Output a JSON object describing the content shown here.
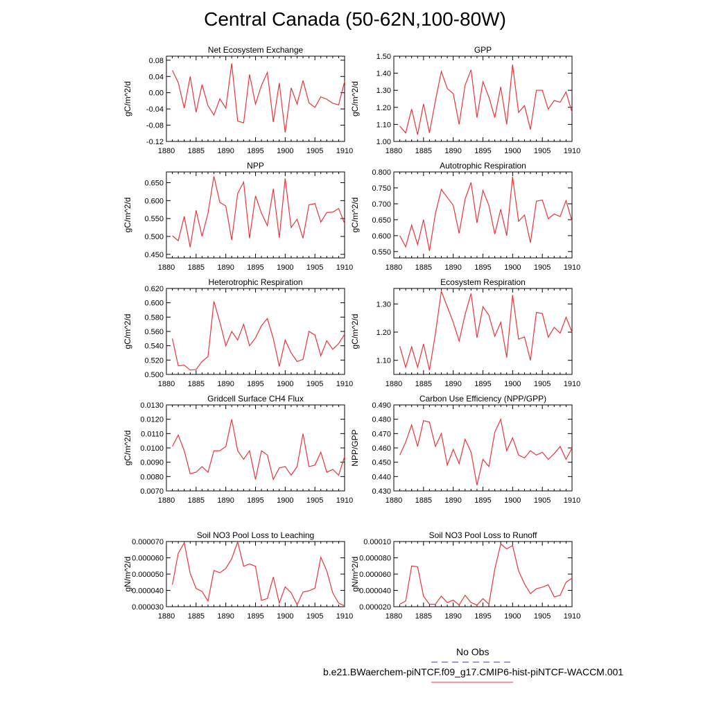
{
  "page": {
    "title": "Central Canada (50-62N,100-80W)"
  },
  "legend": {
    "obs_label": "No Obs",
    "model_label": "b.e21.BWaerchem-piNTCF.f09_g17.CMIP6-hist-piNTCF-WACCM.001",
    "colors": {
      "obs": "#3a3aa0",
      "model": "#e8353a"
    }
  },
  "chart_data": [
    {
      "type": "line",
      "title": "Net Ecosystem Exchange",
      "ylabel": "gC/m^2/d",
      "xlim": [
        1880,
        1910
      ],
      "x_ticks": [
        "1880",
        "1885",
        "1890",
        "1895",
        "1900",
        "1905",
        "1910"
      ],
      "ylim": [
        -0.12,
        0.09
      ],
      "y_ticks": [
        0.08,
        0.04,
        0.0,
        -0.04,
        -0.08,
        -0.12
      ],
      "y_tick_labels": [
        "0.08",
        "0.04",
        "0.00",
        "-0.04",
        "-0.08",
        "-0.12"
      ],
      "x": [
        1881,
        1882,
        1883,
        1884,
        1885,
        1886,
        1887,
        1888,
        1889,
        1890,
        1891,
        1892,
        1893,
        1894,
        1895,
        1896,
        1897,
        1898,
        1899,
        1900,
        1901,
        1902,
        1903,
        1904,
        1905,
        1906,
        1907,
        1908,
        1909,
        1910
      ],
      "series": [
        {
          "values": [
            0.055,
            0.025,
            -0.038,
            0.04,
            -0.048,
            0.02,
            -0.032,
            -0.055,
            -0.015,
            -0.038,
            0.072,
            -0.07,
            -0.074,
            0.045,
            -0.028,
            0.018,
            0.05,
            -0.072,
            0.024,
            -0.098,
            0.012,
            -0.028,
            0.03,
            -0.025,
            -0.036,
            -0.01,
            -0.016,
            -0.026,
            -0.03,
            0.028
          ],
          "color": "#e8353a"
        }
      ]
    },
    {
      "type": "line",
      "title": "GPP",
      "ylabel": "gC/m^2/d",
      "xlim": [
        1880,
        1910
      ],
      "x_ticks": [
        "1880",
        "1885",
        "1890",
        "1895",
        "1900",
        "1905",
        "1910"
      ],
      "ylim": [
        1.0,
        1.5
      ],
      "y_ticks": [
        1.5,
        1.4,
        1.3,
        1.2,
        1.1,
        1.0
      ],
      "y_tick_labels": [
        "1.50",
        "1.40",
        "1.30",
        "1.20",
        "1.10",
        "1.00"
      ],
      "x": [
        1881,
        1882,
        1883,
        1884,
        1885,
        1886,
        1887,
        1888,
        1889,
        1890,
        1891,
        1892,
        1893,
        1894,
        1895,
        1896,
        1897,
        1898,
        1899,
        1900,
        1901,
        1902,
        1903,
        1904,
        1905,
        1906,
        1907,
        1908,
        1909,
        1910
      ],
      "series": [
        {
          "values": [
            1.09,
            1.05,
            1.19,
            1.04,
            1.22,
            1.05,
            1.24,
            1.41,
            1.31,
            1.28,
            1.1,
            1.33,
            1.42,
            1.14,
            1.35,
            1.26,
            1.14,
            1.32,
            1.1,
            1.45,
            1.17,
            1.21,
            1.07,
            1.3,
            1.3,
            1.19,
            1.24,
            1.23,
            1.29,
            1.17
          ],
          "color": "#e8353a"
        }
      ]
    },
    {
      "type": "line",
      "title": "NPP",
      "ylabel": "gC/m^2/d",
      "xlim": [
        1880,
        1910
      ],
      "x_ticks": [
        "1880",
        "1885",
        "1890",
        "1895",
        "1900",
        "1905",
        "1910"
      ],
      "ylim": [
        0.44,
        0.68
      ],
      "y_ticks": [
        0.65,
        0.6,
        0.55,
        0.5,
        0.45
      ],
      "y_tick_labels": [
        "0.650",
        "0.600",
        "0.550",
        "0.500",
        "0.450"
      ],
      "x": [
        1881,
        1882,
        1883,
        1884,
        1885,
        1886,
        1887,
        1888,
        1889,
        1890,
        1891,
        1892,
        1893,
        1894,
        1895,
        1896,
        1897,
        1898,
        1899,
        1900,
        1901,
        1902,
        1903,
        1904,
        1905,
        1906,
        1907,
        1908,
        1909,
        1910
      ],
      "series": [
        {
          "values": [
            0.502,
            0.488,
            0.556,
            0.47,
            0.573,
            0.5,
            0.565,
            0.668,
            0.595,
            0.585,
            0.49,
            0.62,
            0.652,
            0.495,
            0.613,
            0.565,
            0.53,
            0.633,
            0.496,
            0.662,
            0.525,
            0.548,
            0.495,
            0.588,
            0.592,
            0.54,
            0.567,
            0.568,
            0.578,
            0.536
          ],
          "color": "#e8353a"
        }
      ]
    },
    {
      "type": "line",
      "title": "Autotrophic Respiration",
      "ylabel": "gC/m^2/d",
      "xlim": [
        1880,
        1910
      ],
      "x_ticks": [
        "1880",
        "1885",
        "1890",
        "1895",
        "1900",
        "1905",
        "1910"
      ],
      "ylim": [
        0.53,
        0.8
      ],
      "y_ticks": [
        0.8,
        0.75,
        0.7,
        0.65,
        0.6,
        0.55
      ],
      "y_tick_labels": [
        "0.800",
        "0.750",
        "0.700",
        "0.650",
        "0.600",
        "0.550"
      ],
      "x": [
        1881,
        1882,
        1883,
        1884,
        1885,
        1886,
        1887,
        1888,
        1889,
        1890,
        1891,
        1892,
        1893,
        1894,
        1895,
        1896,
        1897,
        1898,
        1899,
        1900,
        1901,
        1902,
        1903,
        1904,
        1905,
        1906,
        1907,
        1908,
        1909,
        1910
      ],
      "series": [
        {
          "values": [
            0.6,
            0.565,
            0.633,
            0.572,
            0.65,
            0.552,
            0.67,
            0.745,
            0.72,
            0.695,
            0.607,
            0.715,
            0.767,
            0.64,
            0.742,
            0.695,
            0.605,
            0.683,
            0.6,
            0.785,
            0.645,
            0.665,
            0.578,
            0.708,
            0.712,
            0.653,
            0.668,
            0.66,
            0.71,
            0.645
          ],
          "color": "#e8353a"
        }
      ]
    },
    {
      "type": "line",
      "title": "Heterotrophic Respiration",
      "ylabel": "gC/m^2/d",
      "xlim": [
        1880,
        1910
      ],
      "x_ticks": [
        "1880",
        "1885",
        "1890",
        "1895",
        "1900",
        "1905",
        "1910"
      ],
      "ylim": [
        0.5,
        0.62
      ],
      "y_ticks": [
        0.62,
        0.6,
        0.58,
        0.56,
        0.54,
        0.52,
        0.5
      ],
      "y_tick_labels": [
        "0.620",
        "0.600",
        "0.580",
        "0.560",
        "0.540",
        "0.520",
        "0.500"
      ],
      "x": [
        1881,
        1882,
        1883,
        1884,
        1885,
        1886,
        1887,
        1888,
        1889,
        1890,
        1891,
        1892,
        1893,
        1894,
        1895,
        1896,
        1897,
        1898,
        1899,
        1900,
        1901,
        1902,
        1903,
        1904,
        1905,
        1906,
        1907,
        1908,
        1909,
        1910
      ],
      "series": [
        {
          "values": [
            0.55,
            0.512,
            0.513,
            0.506,
            0.507,
            0.518,
            0.525,
            0.602,
            0.573,
            0.54,
            0.56,
            0.548,
            0.57,
            0.54,
            0.551,
            0.568,
            0.578,
            0.55,
            0.511,
            0.548,
            0.53,
            0.518,
            0.521,
            0.56,
            0.555,
            0.526,
            0.547,
            0.535,
            0.543,
            0.556
          ],
          "color": "#e8353a"
        }
      ]
    },
    {
      "type": "line",
      "title": "Ecosystem Respiration",
      "ylabel": "gC/m^2/d",
      "xlim": [
        1880,
        1910
      ],
      "x_ticks": [
        "1880",
        "1885",
        "1890",
        "1895",
        "1900",
        "1905",
        "1910"
      ],
      "ylim": [
        1.05,
        1.355
      ],
      "y_ticks": [
        1.3,
        1.2,
        1.1
      ],
      "y_tick_labels": [
        "1.30",
        "1.20",
        "1.10"
      ],
      "x": [
        1881,
        1882,
        1883,
        1884,
        1885,
        1886,
        1887,
        1888,
        1889,
        1890,
        1891,
        1892,
        1893,
        1894,
        1895,
        1896,
        1897,
        1898,
        1899,
        1900,
        1901,
        1902,
        1903,
        1904,
        1905,
        1906,
        1907,
        1908,
        1909,
        1910
      ],
      "series": [
        {
          "values": [
            1.15,
            1.075,
            1.148,
            1.075,
            1.158,
            1.065,
            1.195,
            1.345,
            1.29,
            1.235,
            1.168,
            1.263,
            1.337,
            1.18,
            1.29,
            1.26,
            1.185,
            1.235,
            1.11,
            1.332,
            1.175,
            1.183,
            1.1,
            1.27,
            1.266,
            1.182,
            1.217,
            1.196,
            1.253,
            1.2
          ],
          "color": "#e8353a"
        }
      ]
    },
    {
      "type": "line",
      "title": "Gridcell Surface CH4 Flux",
      "ylabel": "gC/m^2/d",
      "xlim": [
        1880,
        1910
      ],
      "x_ticks": [
        "1880",
        "1885",
        "1890",
        "1895",
        "1900",
        "1905",
        "1910"
      ],
      "ylim": [
        0.007,
        0.013
      ],
      "y_ticks": [
        0.013,
        0.012,
        0.011,
        0.01,
        0.009,
        0.008,
        0.007
      ],
      "y_tick_labels": [
        "0.0130",
        "0.0120",
        "0.0110",
        "0.0100",
        "0.0090",
        "0.0080",
        "0.0070"
      ],
      "x": [
        1881,
        1882,
        1883,
        1884,
        1885,
        1886,
        1887,
        1888,
        1889,
        1890,
        1891,
        1892,
        1893,
        1894,
        1895,
        1896,
        1897,
        1898,
        1899,
        1900,
        1901,
        1902,
        1903,
        1904,
        1905,
        1906,
        1907,
        1908,
        1909,
        1910
      ],
      "series": [
        {
          "values": [
            0.0101,
            0.0109,
            0.0098,
            0.0082,
            0.0083,
            0.0087,
            0.0083,
            0.0098,
            0.0098,
            0.0101,
            0.012,
            0.0098,
            0.0092,
            0.0098,
            0.0078,
            0.0098,
            0.0095,
            0.0078,
            0.0086,
            0.0087,
            0.0081,
            0.0087,
            0.011,
            0.0087,
            0.0088,
            0.0097,
            0.0083,
            0.0085,
            0.0081,
            0.0094
          ],
          "color": "#e8353a"
        }
      ]
    },
    {
      "type": "line",
      "title": "Carbon Use Efficiency (NPP/GPP)",
      "ylabel": "NPP/GPP",
      "xlim": [
        1880,
        1910
      ],
      "x_ticks": [
        "1880",
        "1885",
        "1890",
        "1895",
        "1900",
        "1905",
        "1910"
      ],
      "ylim": [
        0.43,
        0.49
      ],
      "y_ticks": [
        0.49,
        0.48,
        0.47,
        0.46,
        0.45,
        0.44,
        0.43
      ],
      "y_tick_labels": [
        "0.490",
        "0.480",
        "0.470",
        "0.460",
        "0.450",
        "0.440",
        "0.430"
      ],
      "x": [
        1881,
        1882,
        1883,
        1884,
        1885,
        1886,
        1887,
        1888,
        1889,
        1890,
        1891,
        1892,
        1893,
        1894,
        1895,
        1896,
        1897,
        1898,
        1899,
        1900,
        1901,
        1902,
        1903,
        1904,
        1905,
        1906,
        1907,
        1908,
        1909,
        1910
      ],
      "series": [
        {
          "values": [
            0.455,
            0.464,
            0.476,
            0.461,
            0.479,
            0.478,
            0.461,
            0.47,
            0.448,
            0.459,
            0.449,
            0.466,
            0.457,
            0.434,
            0.452,
            0.447,
            0.471,
            0.48,
            0.458,
            0.467,
            0.455,
            0.453,
            0.458,
            0.455,
            0.457,
            0.452,
            0.456,
            0.461,
            0.452,
            0.46
          ],
          "color": "#e8353a"
        }
      ]
    },
    {
      "type": "line",
      "title": "Soil NO3 Pool Loss to Leaching",
      "ylabel": "gN/m^2/d",
      "xlim": [
        1880,
        1910
      ],
      "x_ticks": [
        "1880",
        "1885",
        "1890",
        "1895",
        "1900",
        "1905",
        "1910"
      ],
      "ylim": [
        3e-05,
        7e-05
      ],
      "y_ticks": [
        7e-05,
        6e-05,
        5e-05,
        4e-05,
        3e-05
      ],
      "y_tick_labels": [
        "0.000070",
        "0.000060",
        "0.000050",
        "0.000040",
        "0.000030"
      ],
      "x": [
        1881,
        1882,
        1883,
        1884,
        1885,
        1886,
        1887,
        1888,
        1889,
        1890,
        1891,
        1892,
        1893,
        1894,
        1895,
        1896,
        1897,
        1898,
        1899,
        1900,
        1901,
        1902,
        1903,
        1904,
        1905,
        1906,
        1907,
        1908,
        1909,
        1910
      ],
      "series": [
        {
          "values": [
            4.35e-05,
            6.28e-05,
            6.92e-05,
            5.05e-05,
            4.12e-05,
            3.93e-05,
            3.35e-05,
            5.22e-05,
            5.08e-05,
            5.35e-05,
            5.95e-05,
            6.98e-05,
            5.48e-05,
            5.62e-05,
            5.48e-05,
            3.39e-05,
            3.5e-05,
            4.82e-05,
            3.22e-05,
            4.22e-05,
            3.85e-05,
            3.12e-05,
            3.9e-05,
            3.98e-05,
            4.13e-05,
            6.03e-05,
            5.2e-05,
            3.85e-05,
            3.22e-05,
            3.05e-05
          ],
          "color": "#e8353a"
        }
      ]
    },
    {
      "type": "line",
      "title": "Soil NO3 Pool Loss to Runoff",
      "ylabel": "gN/m^2/d",
      "xlim": [
        1880,
        1910
      ],
      "x_ticks": [
        "1880",
        "1885",
        "1890",
        "1895",
        "1900",
        "1905",
        "1910"
      ],
      "ylim": [
        2e-05,
        0.0001
      ],
      "y_ticks": [
        0.0001,
        8e-05,
        6e-05,
        4e-05,
        2e-05
      ],
      "y_tick_labels": [
        "0.00010",
        "0.000080",
        "0.000060",
        "0.000040",
        "0.000020"
      ],
      "x": [
        1881,
        1882,
        1883,
        1884,
        1885,
        1886,
        1887,
        1888,
        1889,
        1890,
        1891,
        1892,
        1893,
        1894,
        1895,
        1896,
        1897,
        1898,
        1899,
        1900,
        1901,
        1902,
        1903,
        1904,
        1905,
        1906,
        1907,
        1908,
        1909,
        1910
      ],
      "series": [
        {
          "values": [
            2.3e-05,
            2.7e-05,
            7e-05,
            6.9e-05,
            3.3e-05,
            2.3e-05,
            2.3e-05,
            3.3e-05,
            2.5e-05,
            2.8e-05,
            2.2e-05,
            3.4e-05,
            2.5e-05,
            2.2e-05,
            3e-05,
            2.3e-05,
            6.6e-05,
            9.7e-05,
            9.1e-05,
            9.5e-05,
            6.4e-05,
            4.8e-05,
            3.6e-05,
            4.2e-05,
            4.4e-05,
            4.7e-05,
            3.2e-05,
            3.4e-05,
            5e-05,
            5.5e-05
          ],
          "color": "#e8353a"
        }
      ]
    }
  ]
}
